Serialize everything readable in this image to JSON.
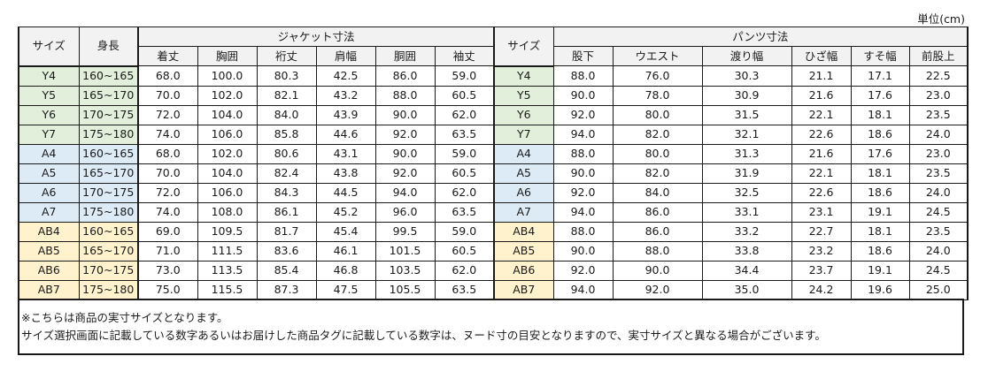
{
  "unit_label": "単位(cm)",
  "headers": {
    "size": "サイズ",
    "height": "身長",
    "jacket_group": "ジャケット寸法",
    "pants_size": "サイズ",
    "pants_group": "パンツ寸法",
    "jacket_cols": [
      "着丈",
      "胸囲",
      "裄丈",
      "肩幅",
      "胴囲",
      "袖丈"
    ],
    "pants_cols": [
      "股下",
      "ウエスト",
      "渡り幅",
      "ひざ幅",
      "すそ幅",
      "前股上"
    ]
  },
  "rows": [
    {
      "size": "Y4",
      "group": "Y",
      "height": "160~165",
      "jacket": [
        "68.0",
        "100.0",
        "80.3",
        "42.5",
        "86.0",
        "59.0"
      ],
      "pants": [
        "88.0",
        "76.0",
        "30.3",
        "21.1",
        "17.1",
        "22.5"
      ]
    },
    {
      "size": "Y5",
      "group": "Y",
      "height": "165~170",
      "jacket": [
        "70.0",
        "102.0",
        "82.1",
        "43.2",
        "88.0",
        "60.5"
      ],
      "pants": [
        "90.0",
        "78.0",
        "30.9",
        "21.6",
        "17.6",
        "23.0"
      ]
    },
    {
      "size": "Y6",
      "group": "Y",
      "height": "170~175",
      "jacket": [
        "72.0",
        "104.0",
        "84.0",
        "43.9",
        "90.0",
        "62.0"
      ],
      "pants": [
        "92.0",
        "80.0",
        "31.5",
        "22.1",
        "18.1",
        "23.5"
      ]
    },
    {
      "size": "Y7",
      "group": "Y",
      "height": "175~180",
      "jacket": [
        "74.0",
        "106.0",
        "85.8",
        "44.6",
        "92.0",
        "63.5"
      ],
      "pants": [
        "94.0",
        "82.0",
        "32.1",
        "22.6",
        "18.6",
        "24.0"
      ]
    },
    {
      "size": "A4",
      "group": "A",
      "height": "160~165",
      "jacket": [
        "68.0",
        "102.0",
        "80.6",
        "43.1",
        "90.0",
        "59.0"
      ],
      "pants": [
        "88.0",
        "80.0",
        "31.3",
        "21.6",
        "17.6",
        "23.0"
      ]
    },
    {
      "size": "A5",
      "group": "A",
      "height": "165~170",
      "jacket": [
        "70.0",
        "104.0",
        "82.4",
        "43.8",
        "92.0",
        "60.5"
      ],
      "pants": [
        "90.0",
        "82.0",
        "31.9",
        "22.1",
        "18.1",
        "23.5"
      ]
    },
    {
      "size": "A6",
      "group": "A",
      "height": "170~175",
      "jacket": [
        "72.0",
        "106.0",
        "84.3",
        "44.5",
        "94.0",
        "62.0"
      ],
      "pants": [
        "92.0",
        "84.0",
        "32.5",
        "22.6",
        "18.6",
        "24.0"
      ]
    },
    {
      "size": "A7",
      "group": "A",
      "height": "175~180",
      "jacket": [
        "74.0",
        "108.0",
        "86.1",
        "45.2",
        "96.0",
        "63.5"
      ],
      "pants": [
        "94.0",
        "86.0",
        "33.1",
        "23.1",
        "19.1",
        "24.5"
      ]
    },
    {
      "size": "AB4",
      "group": "AB",
      "height": "160~165",
      "jacket": [
        "69.0",
        "109.5",
        "81.7",
        "45.4",
        "99.5",
        "59.0"
      ],
      "pants": [
        "88.0",
        "86.0",
        "33.2",
        "22.7",
        "18.1",
        "23.5"
      ]
    },
    {
      "size": "AB5",
      "group": "AB",
      "height": "165~170",
      "jacket": [
        "71.0",
        "111.5",
        "83.6",
        "46.1",
        "101.5",
        "60.5"
      ],
      "pants": [
        "90.0",
        "88.0",
        "33.8",
        "23.2",
        "18.6",
        "24.0"
      ]
    },
    {
      "size": "AB6",
      "group": "AB",
      "height": "170~175",
      "jacket": [
        "73.0",
        "113.5",
        "85.4",
        "46.8",
        "103.5",
        "62.0"
      ],
      "pants": [
        "92.0",
        "90.0",
        "34.4",
        "23.7",
        "19.1",
        "24.5"
      ]
    },
    {
      "size": "AB7",
      "group": "AB",
      "height": "175~180",
      "jacket": [
        "75.0",
        "115.5",
        "87.3",
        "47.5",
        "105.5",
        "63.5"
      ],
      "pants": [
        "94.0",
        "92.0",
        "35.0",
        "24.2",
        "19.6",
        "25.0"
      ]
    }
  ],
  "colors": {
    "Y": "#e2efda",
    "A": "#ddebf7",
    "AB": "#fff2cc",
    "header": "#f2f2f2"
  },
  "notes": [
    "※こちらは商品の実寸サイズとなります。",
    "サイズ選択画面に記載している数字あるいはお届けした商品タグに記載している数字は、ヌード寸の目安となりますので、実寸サイズと異なる場合がございます。"
  ]
}
